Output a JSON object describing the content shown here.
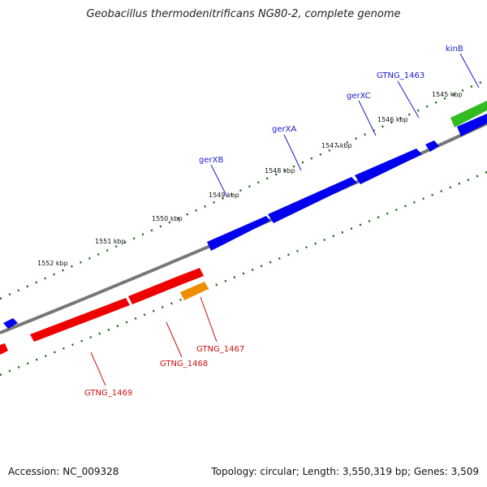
{
  "title": "Geobacillus thermodenitrificans NG80-2, complete genome",
  "footer": {
    "accession": "Accession: NC_009328",
    "summary": "Topology: circular; Length: 3,550,319 bp; Genes: 3,509"
  },
  "colors": {
    "forward_gene": "#0000ee",
    "reverse_gene": "#ee0000",
    "orange_gene": "#f08c00",
    "green_gene": "#33bb22",
    "backbone": "#777777",
    "ticks": "#116611",
    "label_forward": "#1a1acc",
    "label_reverse": "#cc1111"
  },
  "kbp_labels": [
    "1545 kbp",
    "1546 kbp",
    "1547 kbp",
    "1548 kbp",
    "1549 kbp",
    "1550 kbp",
    "1551 kbp",
    "1552 kbp"
  ],
  "gene_labels": {
    "kinB": "kinB",
    "gtng_1463": "GTNG_1463",
    "gerXC": "gerXC",
    "gerXA": "gerXA",
    "gerXB": "gerXB",
    "gtng_1467": "GTNG_1467",
    "gtng_1468": "GTNG_1468",
    "gtng_1469": "GTNG_1469"
  }
}
